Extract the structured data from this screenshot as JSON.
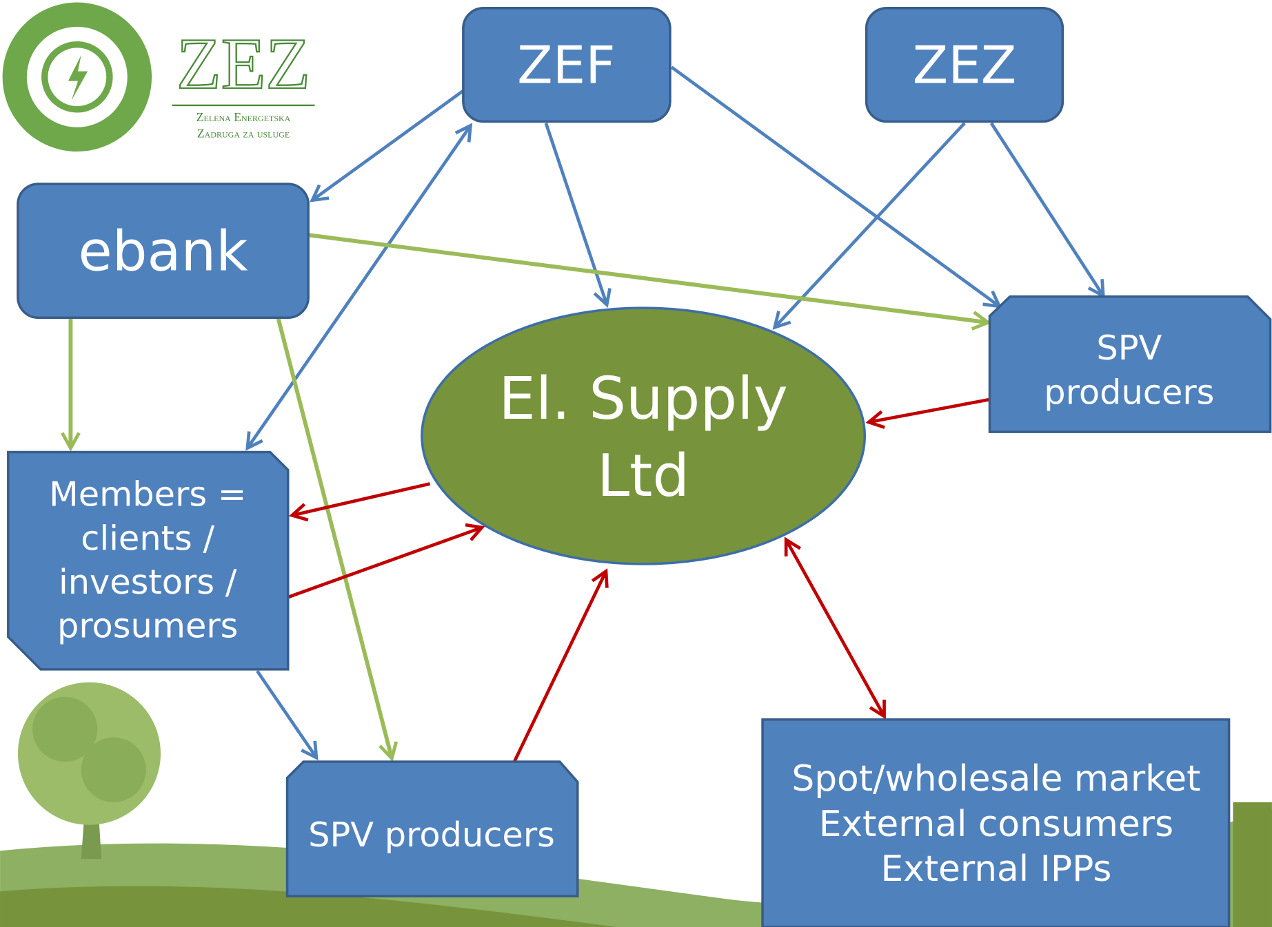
{
  "logo": {
    "title": "ZEZ",
    "line1": "Zelena Energetska",
    "line2": "Zadruga za usluge"
  },
  "nodes": [
    {
      "lines": [
        "ZEF"
      ]
    },
    {
      "lines": [
        "ZEZ"
      ]
    },
    {
      "lines": [
        "ebank"
      ]
    },
    {
      "lines": [
        "El. Supply",
        "Ltd"
      ]
    },
    {
      "lines": [
        "SPV",
        "producers"
      ]
    },
    {
      "lines": [
        "Members =",
        "clients /",
        "investors /",
        "prosumers"
      ]
    },
    {
      "lines": [
        "SPV producers"
      ]
    },
    {
      "lines": [
        "Spot/wholesale market",
        "External consumers",
        "External IPPs"
      ]
    }
  ]
}
